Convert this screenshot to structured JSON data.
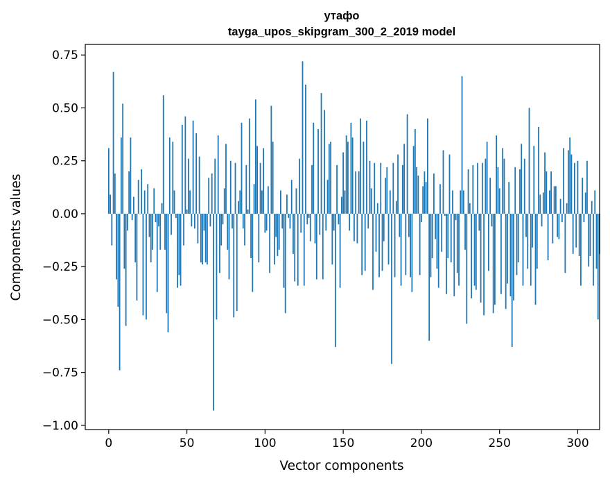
{
  "chart_data": {
    "type": "bar",
    "title_line1": "утафо",
    "title_line2": "tayga_upos_skipgram_300_2_2019 model",
    "xlabel": "Vector components",
    "ylabel": "Components values",
    "xlim": [
      -15,
      314
    ],
    "ylim": [
      -1.02,
      0.8
    ],
    "xticks": [
      0,
      50,
      100,
      150,
      200,
      250,
      300
    ],
    "xtick_labels": [
      "0",
      "50",
      "100",
      "150",
      "200",
      "250",
      "300"
    ],
    "yticks": [
      0.75,
      0.5,
      0.25,
      0.0,
      -0.25,
      -0.5,
      -0.75,
      -1.0
    ],
    "ytick_labels": [
      "0.75",
      "0.50",
      "0.25",
      "0.00",
      "−0.25",
      "−0.50",
      "−0.75",
      "−1.00"
    ],
    "grid": false,
    "bar_color": "#1f77b4",
    "values": [
      0.31,
      0.09,
      -0.15,
      0.67,
      0.19,
      -0.31,
      -0.44,
      -0.74,
      0.36,
      0.52,
      -0.26,
      -0.53,
      -0.08,
      0.2,
      0.36,
      -0.03,
      0.08,
      -0.23,
      -0.41,
      0.16,
      0.0,
      0.21,
      -0.48,
      0.11,
      -0.5,
      0.14,
      -0.11,
      -0.23,
      -0.17,
      0.12,
      -0.04,
      -0.37,
      -0.06,
      -0.17,
      0.05,
      0.56,
      -0.17,
      -0.47,
      -0.56,
      0.36,
      -0.1,
      0.34,
      0.11,
      -0.02,
      -0.35,
      -0.29,
      -0.34,
      0.42,
      -0.15,
      0.46,
      0.02,
      0.26,
      0.11,
      -0.06,
      0.44,
      -0.07,
      0.38,
      -0.14,
      0.27,
      -0.23,
      -0.24,
      -0.08,
      -0.23,
      -0.24,
      0.17,
      -0.06,
      0.19,
      -0.93,
      0.26,
      -0.5,
      0.37,
      -0.28,
      -0.15,
      -0.05,
      0.12,
      0.33,
      -0.17,
      -0.31,
      0.25,
      -0.07,
      -0.49,
      0.24,
      -0.46,
      0.06,
      0.11,
      0.43,
      -0.07,
      -0.15,
      0.23,
      0.02,
      0.45,
      -0.21,
      -0.37,
      0.14,
      0.54,
      0.32,
      -0.23,
      0.24,
      0.11,
      0.31,
      -0.09,
      -0.08,
      0.13,
      -0.28,
      0.51,
      0.34,
      -0.24,
      -0.11,
      -0.2,
      -0.17,
      0.11,
      -0.07,
      -0.35,
      -0.47,
      0.09,
      -0.02,
      -0.07,
      0.16,
      -0.19,
      -0.32,
      0.12,
      -0.34,
      0.26,
      -0.09,
      0.72,
      -0.34,
      0.61,
      -0.05,
      -0.02,
      -0.13,
      0.23,
      0.43,
      -0.14,
      -0.31,
      0.4,
      -0.1,
      0.57,
      -0.31,
      0.49,
      -0.08,
      0.16,
      0.33,
      0.34,
      -0.24,
      -0.08,
      -0.63,
      0.23,
      -0.05,
      -0.35,
      0.08,
      0.29,
      0.11,
      0.37,
      0.34,
      -0.08,
      0.43,
      0.36,
      -0.13,
      0.2,
      -0.14,
      0.2,
      0.45,
      -0.29,
      0.34,
      -0.27,
      0.44,
      -0.07,
      0.25,
      0.12,
      -0.36,
      0.24,
      -0.18,
      0.05,
      -0.3,
      0.24,
      -0.27,
      -0.13,
      0.17,
      0.22,
      -0.24,
      0.11,
      -0.71,
      0.24,
      -0.3,
      0.06,
      0.28,
      -0.11,
      -0.34,
      0.23,
      0.33,
      -0.29,
      0.47,
      -0.11,
      -0.3,
      -0.37,
      0.32,
      0.4,
      0.22,
      0.18,
      -0.29,
      -0.04,
      0.13,
      0.2,
      0.15,
      0.45,
      -0.6,
      -0.3,
      -0.21,
      0.19,
      -0.12,
      -0.26,
      -0.35,
      0.14,
      -0.18,
      0.3,
      -0.01,
      -0.38,
      -0.21,
      0.28,
      -0.23,
      0.11,
      -0.39,
      -0.03,
      -0.28,
      -0.34,
      0.11,
      0.65,
      0.11,
      -0.17,
      -0.52,
      0.21,
      0.05,
      -0.4,
      0.23,
      -0.34,
      -0.36,
      0.24,
      -0.08,
      -0.42,
      0.24,
      -0.48,
      0.26,
      0.34,
      -0.27,
      0.17,
      -0.06,
      -0.47,
      -0.43,
      0.37,
      0.22,
      0.12,
      -0.38,
      0.31,
      0.26,
      -0.45,
      -0.33,
      0.15,
      -0.39,
      -0.63,
      -0.41,
      0.22,
      -0.29,
      -0.23,
      0.21,
      0.33,
      -0.34,
      0.26,
      -0.11,
      -0.26,
      0.5,
      -0.34,
      -0.16,
      0.32,
      -0.43,
      -0.26,
      0.41,
      0.09,
      -0.06,
      0.1,
      0.29,
      0.2,
      -0.22,
      0.11,
      0.2,
      -0.14,
      0.13,
      0.13,
      -0.11,
      -0.12,
      0.07,
      -0.04,
      0.31,
      -0.28,
      0.05,
      0.3,
      0.36,
      0.28,
      -0.19,
      0.24,
      -0.16,
      0.25,
      -0.2,
      -0.34,
      0.17,
      -0.04,
      0.1,
      0.25,
      -0.25,
      -0.2,
      0.06,
      -0.34,
      0.11,
      -0.26,
      -0.5,
      -0.19
    ]
  }
}
